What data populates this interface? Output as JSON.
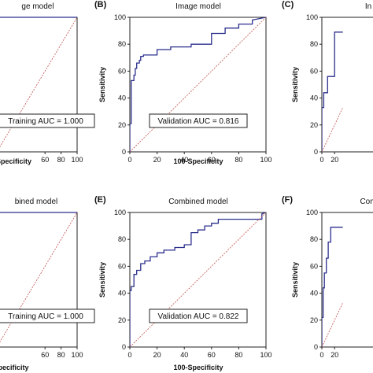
{
  "chart_data": [
    {
      "type": "line",
      "panel": "",
      "title": "ge model",
      "xlabel": "-Specificity",
      "ylabel": "",
      "xlim": [
        0,
        100
      ],
      "ylim": [
        0,
        100
      ],
      "xticks": [
        60,
        80,
        100
      ],
      "yticks": [],
      "annotation": "Training AUC = 1.000",
      "series": [
        {
          "x": [
            0,
            0,
            100
          ],
          "y": [
            0,
            100,
            100
          ],
          "color": "#2b2f8c"
        },
        {
          "x": [
            0,
            100
          ],
          "y": [
            0,
            100
          ],
          "color": "#c0504d",
          "dashed": true
        }
      ]
    },
    {
      "type": "line",
      "panel": "(B)",
      "title": "Image model",
      "xlabel": "100-Specificity",
      "ylabel": "Sensitivity",
      "xlim": [
        0,
        100
      ],
      "ylim": [
        0,
        100
      ],
      "xticks": [
        0,
        20,
        40,
        60,
        80,
        100
      ],
      "yticks": [
        0,
        20,
        40,
        60,
        80,
        100
      ],
      "annotation": "Validation AUC = 0.816",
      "series": [
        {
          "x": [
            0,
            0,
            1,
            1,
            3,
            3,
            4,
            4,
            5,
            5,
            7,
            7,
            8,
            8,
            10,
            10,
            20,
            20,
            30,
            30,
            45,
            45,
            60,
            60,
            70,
            70,
            80,
            80,
            90,
            90,
            100
          ],
          "y": [
            0,
            21,
            21,
            53,
            53,
            57,
            57,
            62,
            62,
            66,
            66,
            68,
            68,
            71,
            71,
            72,
            72,
            76,
            76,
            78,
            78,
            80,
            80,
            88,
            88,
            92,
            92,
            95,
            95,
            98,
            100
          ],
          "color": "#2b2f8c"
        },
        {
          "x": [
            0,
            100
          ],
          "y": [
            0,
            100
          ],
          "color": "#c0504d",
          "dashed": true
        }
      ]
    },
    {
      "type": "line",
      "panel": "(C)",
      "title": "In",
      "xlabel": "",
      "ylabel": "Sensitivity",
      "xlim": [
        0,
        100
      ],
      "ylim": [
        0,
        100
      ],
      "xticks": [
        0,
        20
      ],
      "yticks": [
        0,
        20,
        40,
        60,
        80,
        100
      ],
      "annotation": "",
      "series": [
        {
          "x": [
            0,
            0,
            3,
            3,
            9,
            9,
            20,
            20,
            33
          ],
          "y": [
            0,
            33,
            33,
            44,
            44,
            56,
            56,
            89,
            89
          ],
          "color": "#2b2f8c"
        },
        {
          "x": [
            0,
            33
          ],
          "y": [
            0,
            33
          ],
          "color": "#c0504d",
          "dashed": true
        }
      ]
    },
    {
      "type": "line",
      "panel": "",
      "title": "bined model",
      "xlabel": "Specificity",
      "ylabel": "",
      "xlim": [
        0,
        100
      ],
      "ylim": [
        0,
        100
      ],
      "xticks": [
        60,
        80,
        100
      ],
      "yticks": [],
      "annotation": "Training AUC = 1.000",
      "series": [
        {
          "x": [
            0,
            0,
            100
          ],
          "y": [
            0,
            100,
            100
          ],
          "color": "#2b2f8c"
        },
        {
          "x": [
            0,
            100
          ],
          "y": [
            0,
            100
          ],
          "color": "#c0504d",
          "dashed": true
        }
      ]
    },
    {
      "type": "line",
      "panel": "(E)",
      "title": "Combined model",
      "xlabel": "100-Specificity",
      "ylabel": "Sensitivity",
      "xlim": [
        0,
        100
      ],
      "ylim": [
        0,
        100
      ],
      "xticks": [
        0,
        20,
        40,
        60,
        80,
        100
      ],
      "yticks": [
        0,
        20,
        40,
        60,
        80,
        100
      ],
      "annotation": "Validation AUC = 0.822",
      "series": [
        {
          "x": [
            0,
            0,
            1,
            1,
            3,
            3,
            5,
            5,
            8,
            8,
            11,
            11,
            15,
            15,
            20,
            20,
            25,
            25,
            33,
            33,
            40,
            40,
            45,
            45,
            50,
            50,
            55,
            55,
            60,
            60,
            65,
            65,
            97,
            97,
            100
          ],
          "y": [
            0,
            42,
            42,
            45,
            45,
            54,
            54,
            57,
            57,
            62,
            62,
            64,
            64,
            67,
            67,
            70,
            70,
            72,
            72,
            74,
            74,
            76,
            76,
            85,
            85,
            87,
            87,
            90,
            90,
            92,
            92,
            95,
            95,
            99,
            100
          ],
          "color": "#2b2f8c"
        },
        {
          "x": [
            0,
            100
          ],
          "y": [
            0,
            100
          ],
          "color": "#c0504d",
          "dashed": true
        }
      ]
    },
    {
      "type": "line",
      "panel": "(F)",
      "title": "Com",
      "xlabel": "",
      "ylabel": "Sensitivity",
      "xlim": [
        0,
        100
      ],
      "ylim": [
        0,
        100
      ],
      "xticks": [
        0,
        20
      ],
      "yticks": [
        0,
        20,
        40,
        60,
        80,
        100
      ],
      "annotation": "",
      "series": [
        {
          "x": [
            0,
            0,
            2,
            2,
            4,
            4,
            7,
            7,
            10,
            10,
            14,
            14,
            33
          ],
          "y": [
            0,
            22,
            22,
            44,
            44,
            55,
            55,
            66,
            66,
            78,
            78,
            89,
            89
          ],
          "color": "#2b2f8c"
        },
        {
          "x": [
            0,
            33
          ],
          "y": [
            0,
            33
          ],
          "color": "#c0504d",
          "dashed": true
        }
      ]
    }
  ]
}
